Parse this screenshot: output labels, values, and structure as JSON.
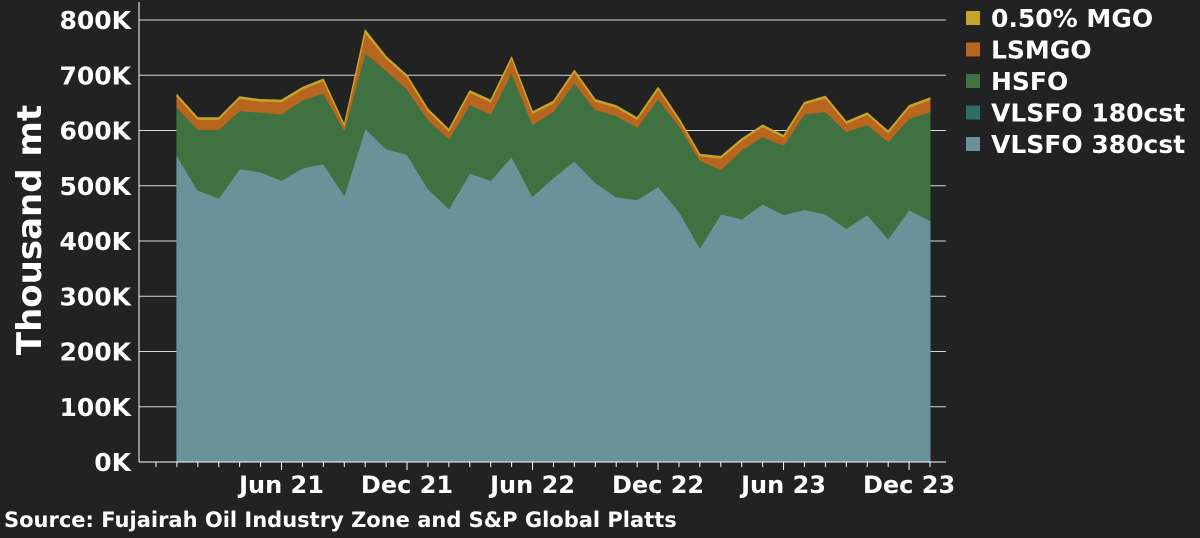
{
  "chart_data": {
    "type": "area",
    "stacked": true,
    "ylabel": "Thousand mt",
    "ylim": [
      0,
      800000
    ],
    "yticks": [
      0,
      100000,
      200000,
      300000,
      400000,
      500000,
      600000,
      700000,
      800000
    ],
    "ytick_labels": [
      "0K",
      "100K",
      "200K",
      "300K",
      "400K",
      "500K",
      "600K",
      "700K",
      "800K"
    ],
    "xticks": [
      "2021-06",
      "2021-12",
      "2022-06",
      "2022-12",
      "2023-06",
      "2023-12"
    ],
    "xtick_labels": [
      "Jun 21",
      "Dec 21",
      "Jun 22",
      "Dec 22",
      "Jun 23",
      "Dec 23"
    ],
    "xlim": [
      "2020-12",
      "2024-01"
    ],
    "grid": true,
    "legend_position": "right",
    "x": [
      "2021-01",
      "2021-02",
      "2021-03",
      "2021-04",
      "2021-05",
      "2021-06",
      "2021-07",
      "2021-08",
      "2021-09",
      "2021-10",
      "2021-11",
      "2021-12",
      "2022-01",
      "2022-02",
      "2022-03",
      "2022-04",
      "2022-05",
      "2022-06",
      "2022-07",
      "2022-08",
      "2022-09",
      "2022-10",
      "2022-11",
      "2022-12",
      "2023-01",
      "2023-02",
      "2023-03",
      "2023-04",
      "2023-05",
      "2023-06",
      "2023-07",
      "2023-08",
      "2023-09",
      "2023-10",
      "2023-11",
      "2023-12",
      "2024-01"
    ],
    "series": [
      {
        "name": "VLSFO 380cst",
        "color": "#6a9299",
        "values": [
          555000,
          492000,
          478000,
          531000,
          525000,
          510000,
          532000,
          540000,
          483000,
          604000,
          567000,
          557000,
          495000,
          459000,
          523000,
          510000,
          553000,
          481000,
          515000,
          545000,
          506000,
          480000,
          475000,
          499000,
          454000,
          388000,
          449000,
          440000,
          467000,
          448000,
          457000,
          449000,
          423000,
          448000,
          404000,
          457000,
          437000
        ]
      },
      {
        "name": "VLSFO 180cst",
        "color": "#2f6b67",
        "values": [
          0,
          0,
          0,
          0,
          0,
          0,
          0,
          0,
          0,
          0,
          0,
          0,
          0,
          0,
          0,
          0,
          0,
          0,
          0,
          0,
          0,
          0,
          0,
          0,
          0,
          0,
          0,
          0,
          0,
          0,
          0,
          0,
          0,
          0,
          0,
          0,
          0
        ]
      },
      {
        "name": "HSFO",
        "color": "#3f7240",
        "values": [
          87000,
          110000,
          124000,
          105000,
          108000,
          120000,
          123000,
          128000,
          118000,
          137000,
          142000,
          118000,
          125000,
          126000,
          124000,
          120000,
          152000,
          130000,
          120000,
          141000,
          132000,
          147000,
          131000,
          158000,
          155000,
          158000,
          80000,
          125000,
          122000,
          125000,
          173000,
          185000,
          175000,
          163000,
          176000,
          165000,
          197000
        ]
      },
      {
        "name": "LSMGO",
        "color": "#b8651f",
        "values": [
          20000,
          18000,
          18000,
          22000,
          20000,
          22000,
          20000,
          22000,
          8000,
          36000,
          22000,
          22000,
          16000,
          14000,
          22000,
          22000,
          25000,
          20000,
          15000,
          20000,
          15000,
          15000,
          14000,
          18000,
          10000,
          8000,
          21000,
          17000,
          18000,
          15000,
          18000,
          25000,
          15000,
          18000,
          16000,
          20000,
          22000
        ]
      },
      {
        "name": "0.50% MGO",
        "color": "#c4a42a",
        "values": [
          3000,
          3000,
          3000,
          3000,
          3000,
          3000,
          3000,
          3000,
          2000,
          5000,
          3000,
          3000,
          3000,
          3000,
          3000,
          3000,
          3000,
          3000,
          3000,
          3000,
          3000,
          3000,
          3000,
          3000,
          3000,
          3000,
          3000,
          3000,
          3000,
          3000,
          3000,
          3000,
          3000,
          3000,
          3000,
          3000,
          3000
        ]
      }
    ],
    "legend_order": [
      "0.50% MGO",
      "LSMGO",
      "HSFO",
      "VLSFO 180cst",
      "VLSFO 380cst"
    ],
    "source": "Source: Fujairah Oil Industry Zone and S&P Global Platts"
  }
}
